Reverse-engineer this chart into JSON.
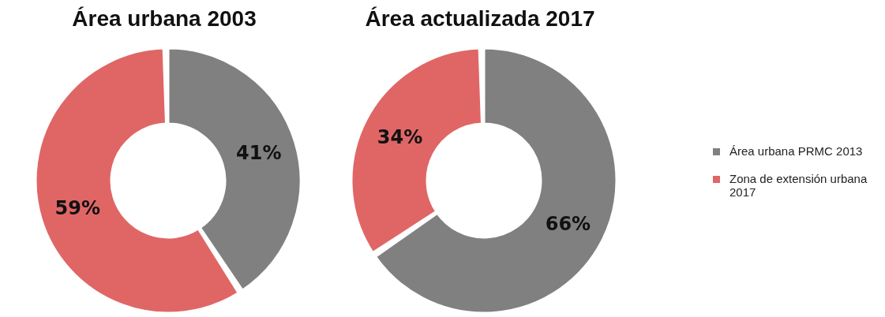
{
  "chart_data": [
    {
      "type": "donut",
      "title": "Área urbana 2003",
      "categories": [
        null,
        null
      ],
      "values": [
        41,
        59
      ],
      "colors": [
        "#808080",
        "#e06666"
      ],
      "value_labels": [
        "41%",
        "59%"
      ],
      "legend": false
    },
    {
      "type": "donut",
      "title": "Área actualizada 2017",
      "categories": [
        "Área urbana PRMC 2013",
        "Zona de extensión urbana 2017"
      ],
      "values": [
        66,
        34
      ],
      "colors": [
        "#808080",
        "#e06666"
      ],
      "value_labels": [
        "66%",
        "34%"
      ],
      "legend": "right"
    }
  ]
}
